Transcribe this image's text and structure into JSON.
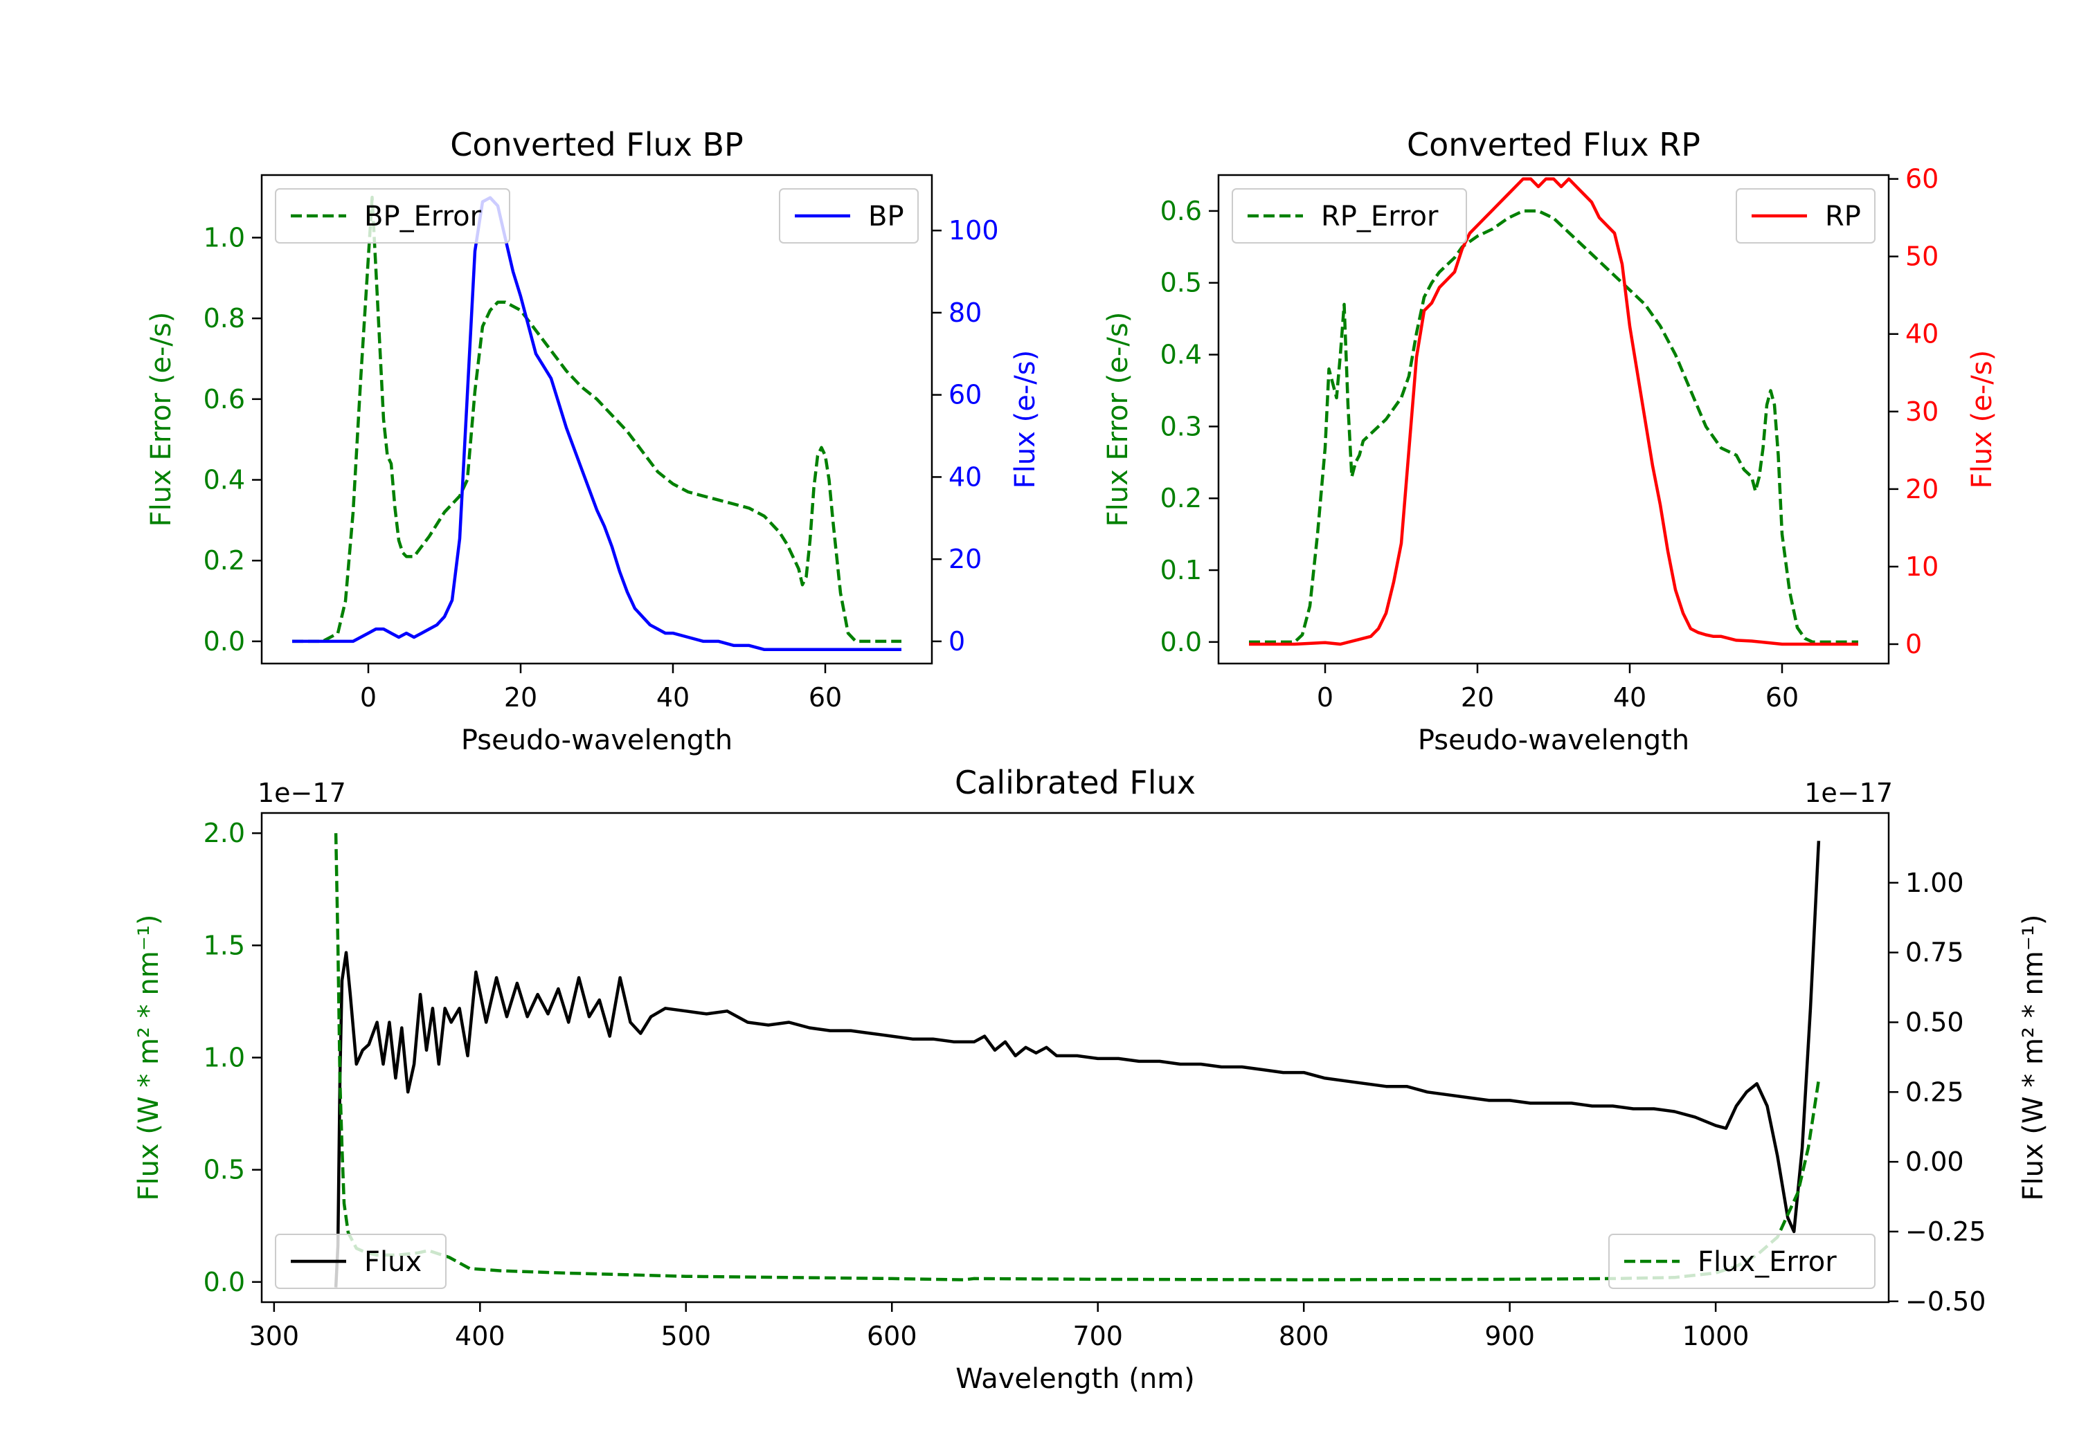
{
  "chart_data": [
    {
      "id": "bp",
      "type": "line",
      "title": "Converted Flux BP",
      "xlabel": "Pseudo-wavelength",
      "xlim": [
        -14,
        74
      ],
      "xticks": [
        0,
        20,
        40,
        60
      ],
      "left_axis": {
        "label": "Flux Error (e-/s)",
        "color": "#008000",
        "ylim": [
          -0.055,
          1.155
        ],
        "ticks": [
          "0.0",
          "0.2",
          "0.4",
          "0.6",
          "0.8",
          "1.0"
        ],
        "tick_values": [
          0,
          0.2,
          0.4,
          0.6,
          0.8,
          1.0
        ]
      },
      "right_axis": {
        "label": "Flux (e-/s)",
        "color": "#0000ff",
        "ylim": [
          -5.4,
          113.5
        ],
        "ticks": [
          "0",
          "20",
          "40",
          "60",
          "80",
          "100"
        ],
        "tick_values": [
          0,
          20,
          40,
          60,
          80,
          100
        ]
      },
      "series": [
        {
          "name": "BP_Error",
          "axis": "left",
          "color": "#008000",
          "dash": true,
          "x": [
            -10,
            -6,
            -4,
            -3,
            -2,
            -1,
            0,
            0.5,
            1,
            2,
            2.5,
            3,
            3.5,
            4,
            4.5,
            5,
            6,
            8,
            10,
            12,
            13,
            14,
            15,
            16,
            17,
            18,
            20,
            22,
            24,
            26,
            28,
            30,
            32,
            34,
            36,
            38,
            40,
            42,
            44,
            46,
            48,
            50,
            52,
            54,
            55,
            56,
            56.5,
            57,
            57.5,
            58,
            58.5,
            59,
            59.5,
            60,
            60.5,
            61,
            62,
            63,
            64,
            66,
            68,
            70
          ],
          "y": [
            0,
            0,
            0.02,
            0.1,
            0.32,
            0.65,
            0.95,
            1.1,
            0.92,
            0.55,
            0.46,
            0.44,
            0.33,
            0.25,
            0.22,
            0.21,
            0.21,
            0.26,
            0.32,
            0.36,
            0.4,
            0.62,
            0.78,
            0.82,
            0.84,
            0.84,
            0.82,
            0.77,
            0.72,
            0.67,
            0.63,
            0.6,
            0.56,
            0.52,
            0.47,
            0.42,
            0.39,
            0.37,
            0.36,
            0.35,
            0.34,
            0.33,
            0.31,
            0.27,
            0.24,
            0.2,
            0.18,
            0.14,
            0.16,
            0.25,
            0.38,
            0.46,
            0.48,
            0.46,
            0.4,
            0.3,
            0.12,
            0.02,
            0,
            0,
            0,
            0
          ]
        },
        {
          "name": "BP",
          "axis": "right",
          "color": "#0000ff",
          "dash": false,
          "x": [
            -10,
            -5,
            -2,
            0,
            1,
            2,
            3,
            4,
            5,
            6,
            7,
            8,
            9,
            10,
            11,
            12,
            13,
            14,
            15,
            16,
            17,
            18,
            19,
            20,
            21,
            22,
            23,
            24,
            25,
            26,
            27,
            28,
            29,
            30,
            31,
            32,
            33,
            34,
            35,
            36,
            37,
            38,
            39,
            40,
            42,
            44,
            46,
            48,
            50,
            52,
            54,
            56,
            58,
            60,
            62,
            64,
            66,
            68,
            70
          ],
          "y": [
            0,
            0,
            0,
            2,
            3,
            3,
            2,
            1,
            2,
            1,
            2,
            3,
            4,
            6,
            10,
            25,
            60,
            95,
            107,
            108,
            106,
            98,
            90,
            84,
            77,
            70,
            67,
            64,
            58,
            52,
            47,
            42,
            37,
            32,
            28,
            23,
            17,
            12,
            8,
            6,
            4,
            3,
            2,
            2,
            1,
            0,
            0,
            -1,
            -1,
            -2,
            -2,
            -2,
            -2,
            -2,
            -2,
            -2,
            -2,
            -2,
            -2
          ]
        }
      ],
      "legends": [
        {
          "series": "BP_Error",
          "label": "BP_Error",
          "loc": "upper left"
        },
        {
          "series": "BP",
          "label": "BP",
          "loc": "upper right"
        }
      ]
    },
    {
      "id": "rp",
      "type": "line",
      "title": "Converted Flux RP",
      "xlabel": "Pseudo-wavelength",
      "xlim": [
        -14,
        74
      ],
      "xticks": [
        0,
        20,
        40,
        60
      ],
      "left_axis": {
        "label": "Flux Error (e-/s)",
        "color": "#008000",
        "ylim": [
          -0.03,
          0.65
        ],
        "ticks": [
          "0.0",
          "0.1",
          "0.2",
          "0.3",
          "0.4",
          "0.5",
          "0.6"
        ],
        "tick_values": [
          0,
          0.1,
          0.2,
          0.3,
          0.4,
          0.5,
          0.6
        ]
      },
      "right_axis": {
        "label": "Flux (e-/s)",
        "color": "#ff0000",
        "ylim": [
          -2.5,
          60.5
        ],
        "ticks": [
          "0",
          "10",
          "20",
          "30",
          "40",
          "50",
          "60"
        ],
        "tick_values": [
          0,
          10,
          20,
          30,
          40,
          50,
          60
        ]
      },
      "series": [
        {
          "name": "RP_Error",
          "axis": "left",
          "color": "#008000",
          "dash": true,
          "x": [
            -10,
            -6,
            -4,
            -3,
            -2,
            -1,
            0,
            0.5,
            1,
            1.5,
            2,
            2.5,
            3,
            3.5,
            4,
            4.5,
            5,
            6,
            7,
            8,
            10,
            11,
            12,
            13,
            14,
            15,
            16,
            17,
            18,
            20,
            22,
            24,
            26,
            28,
            30,
            32,
            34,
            36,
            38,
            40,
            42,
            44,
            46,
            48,
            50,
            52,
            54,
            55,
            56,
            56.5,
            57,
            57.5,
            58,
            58.5,
            59,
            59.5,
            60,
            61,
            62,
            63,
            64,
            66,
            70
          ],
          "y": [
            0,
            0,
            0,
            0.01,
            0.05,
            0.15,
            0.27,
            0.38,
            0.36,
            0.34,
            0.4,
            0.47,
            0.33,
            0.23,
            0.25,
            0.26,
            0.28,
            0.29,
            0.3,
            0.31,
            0.34,
            0.37,
            0.43,
            0.48,
            0.5,
            0.515,
            0.525,
            0.535,
            0.55,
            0.565,
            0.575,
            0.59,
            0.6,
            0.6,
            0.59,
            0.57,
            0.55,
            0.53,
            0.51,
            0.49,
            0.47,
            0.44,
            0.4,
            0.35,
            0.3,
            0.27,
            0.26,
            0.24,
            0.23,
            0.21,
            0.23,
            0.27,
            0.33,
            0.35,
            0.33,
            0.26,
            0.15,
            0.07,
            0.02,
            0.005,
            0,
            0,
            0
          ]
        },
        {
          "name": "RP",
          "axis": "right",
          "color": "#ff0000",
          "dash": false,
          "x": [
            -10,
            -4,
            0,
            2,
            4,
            6,
            7,
            8,
            9,
            10,
            11,
            12,
            13,
            14,
            15,
            16,
            17,
            18,
            19,
            20,
            21,
            22,
            23,
            24,
            25,
            26,
            27,
            28,
            29,
            30,
            31,
            32,
            33,
            34,
            35,
            36,
            37,
            38,
            39,
            40,
            41,
            42,
            43,
            44,
            45,
            46,
            47,
            48,
            49,
            50,
            51,
            52,
            54,
            56,
            58,
            60,
            62,
            66,
            70
          ],
          "y": [
            0,
            0,
            0.2,
            0,
            0.5,
            1,
            2,
            4,
            8,
            13,
            25,
            37,
            43,
            44,
            46,
            47,
            48,
            51,
            53,
            54,
            55,
            56,
            57,
            58,
            59,
            60,
            60,
            59,
            60,
            60,
            59,
            60,
            59,
            58,
            57,
            55,
            54,
            53,
            49,
            41,
            35,
            29,
            23,
            18,
            12,
            7,
            4,
            2,
            1.5,
            1.2,
            1,
            1,
            0.5,
            0.4,
            0.2,
            0,
            0,
            0,
            0
          ]
        }
      ],
      "legends": [
        {
          "series": "RP_Error",
          "label": "RP_Error",
          "loc": "upper left"
        },
        {
          "series": "RP",
          "label": "RP",
          "loc": "upper right"
        }
      ]
    },
    {
      "id": "cal",
      "type": "line",
      "title": "Calibrated Flux",
      "xlabel": "Wavelength (nm)",
      "xlim": [
        294,
        1084
      ],
      "xticks": [
        300,
        400,
        500,
        600,
        700,
        800,
        900,
        1000
      ],
      "left_axis": {
        "label": "Flux (W * m² * nm⁻¹)",
        "color": "#008000",
        "offset_text": "1e−17",
        "ylim": [
          -0.09,
          2.09
        ],
        "ticks": [
          "0.0",
          "0.5",
          "1.0",
          "1.5",
          "2.0"
        ],
        "tick_values": [
          0,
          0.5,
          1.0,
          1.5,
          2.0
        ]
      },
      "right_axis": {
        "label": "Flux (W * m² * nm⁻¹)",
        "color": "#000000",
        "offset_text": "1e−17",
        "ylim": [
          -0.503,
          1.25
        ],
        "ticks": [
          "−0.50",
          "−0.25",
          "0.00",
          "0.25",
          "0.50",
          "0.75",
          "1.00"
        ],
        "tick_values": [
          -0.5,
          -0.25,
          0,
          0.25,
          0.5,
          0.75,
          1.0
        ]
      },
      "series": [
        {
          "name": "Flux",
          "axis": "right",
          "color": "#000000",
          "dash": false,
          "x": [
            330,
            331,
            332,
            333,
            335,
            337,
            340,
            343,
            346,
            350,
            353,
            356,
            359,
            362,
            365,
            368,
            371,
            374,
            377,
            380,
            383,
            386,
            390,
            394,
            398,
            403,
            408,
            413,
            418,
            423,
            428,
            433,
            438,
            443,
            448,
            453,
            458,
            463,
            468,
            473,
            478,
            483,
            490,
            500,
            510,
            520,
            530,
            540,
            550,
            560,
            570,
            580,
            590,
            600,
            610,
            620,
            630,
            640,
            645,
            650,
            655,
            660,
            665,
            670,
            675,
            680,
            690,
            700,
            710,
            720,
            730,
            740,
            750,
            760,
            770,
            780,
            790,
            800,
            810,
            820,
            830,
            840,
            850,
            860,
            870,
            880,
            890,
            900,
            910,
            920,
            930,
            940,
            950,
            960,
            970,
            980,
            990,
            1000,
            1005,
            1010,
            1015,
            1020,
            1025,
            1030,
            1035,
            1038,
            1042,
            1046,
            1050
          ],
          "y": [
            -0.45,
            -0.3,
            0.3,
            0.65,
            0.75,
            0.6,
            0.35,
            0.4,
            0.42,
            0.5,
            0.35,
            0.5,
            0.3,
            0.48,
            0.25,
            0.35,
            0.6,
            0.4,
            0.55,
            0.35,
            0.55,
            0.5,
            0.55,
            0.38,
            0.68,
            0.5,
            0.66,
            0.52,
            0.64,
            0.52,
            0.6,
            0.53,
            0.62,
            0.5,
            0.66,
            0.52,
            0.58,
            0.45,
            0.66,
            0.5,
            0.46,
            0.52,
            0.55,
            0.54,
            0.53,
            0.54,
            0.5,
            0.49,
            0.5,
            0.48,
            0.47,
            0.47,
            0.46,
            0.45,
            0.44,
            0.44,
            0.43,
            0.43,
            0.45,
            0.4,
            0.43,
            0.38,
            0.41,
            0.39,
            0.41,
            0.38,
            0.38,
            0.37,
            0.37,
            0.36,
            0.36,
            0.35,
            0.35,
            0.34,
            0.34,
            0.33,
            0.32,
            0.32,
            0.3,
            0.29,
            0.28,
            0.27,
            0.27,
            0.25,
            0.24,
            0.23,
            0.22,
            0.22,
            0.21,
            0.21,
            0.21,
            0.2,
            0.2,
            0.19,
            0.19,
            0.18,
            0.16,
            0.13,
            0.12,
            0.2,
            0.25,
            0.28,
            0.2,
            0.02,
            -0.2,
            -0.25,
            0.05,
            0.55,
            1.15
          ]
        },
        {
          "name": "Flux_Error",
          "axis": "left",
          "color": "#008000",
          "dash": true,
          "x": [
            330,
            331,
            332,
            333,
            334,
            336,
            340,
            345,
            350,
            360,
            370,
            375,
            385,
            395,
            410,
            440,
            500,
            600,
            635,
            640,
            700,
            800,
            900,
            950,
            980,
            1000,
            1010,
            1020,
            1030,
            1040,
            1045,
            1050
          ],
          "y": [
            2.0,
            1.5,
            0.9,
            0.6,
            0.35,
            0.22,
            0.15,
            0.13,
            0.12,
            0.12,
            0.13,
            0.14,
            0.11,
            0.06,
            0.05,
            0.04,
            0.025,
            0.015,
            0.01,
            0.015,
            0.012,
            0.01,
            0.012,
            0.015,
            0.02,
            0.04,
            0.07,
            0.12,
            0.2,
            0.4,
            0.6,
            0.9
          ]
        }
      ],
      "legends": [
        {
          "series": "Flux",
          "label": "Flux",
          "loc": "lower left"
        },
        {
          "series": "Flux_Error",
          "label": "Flux_Error",
          "loc": "lower right"
        }
      ]
    }
  ]
}
